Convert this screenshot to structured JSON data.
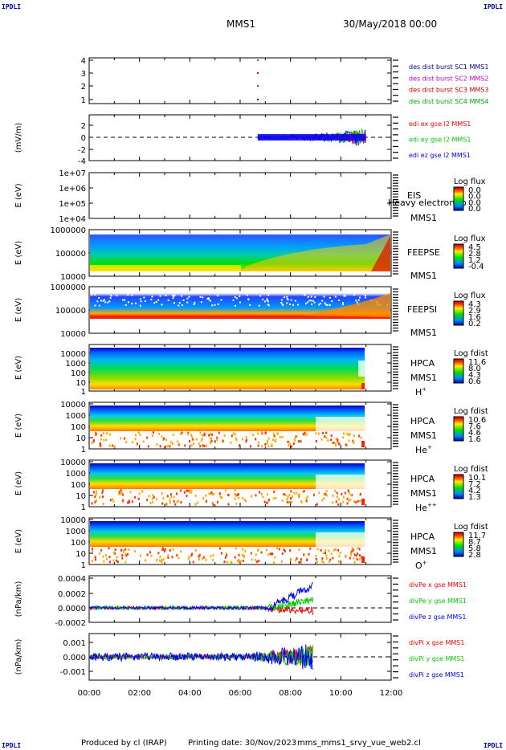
{
  "corner_label": "IPDLI",
  "header": {
    "spacecraft": "MMS1",
    "date": "30/May/2018 00:00"
  },
  "footer": {
    "produced_by": "Produced by cl (IRAP)",
    "printing_date": "Printing date: 30/Nov/2023",
    "file": "mms_mms1_srvy_vue_web2.cl"
  },
  "colors": {
    "c1": "#000099",
    "c2": "#cc00cc",
    "c3": "#cc0000",
    "c4": "#00aa00",
    "x": "#ff0000",
    "y": "#00cc00",
    "z": "#0000ff"
  },
  "chart_data": {
    "type": "multi-panel",
    "x_ticks": [
      "00:00",
      "02:00",
      "04:00",
      "06:00",
      "08:00",
      "10:00",
      "12:00"
    ],
    "xlim_hours": [
      0,
      12
    ],
    "panels": [
      {
        "id": "burst",
        "type": "scatter",
        "ylabel": "",
        "yticks": [
          "4",
          "3",
          "2",
          "1"
        ],
        "legend": [
          "des dist burst SC1 MMS1",
          "des dist burst SC2 MMS2",
          "des dist burst SC3 MMS3",
          "des dist burst SC4 MMS4"
        ],
        "points": [
          {
            "x": 6.7,
            "y": 4
          },
          {
            "x": 6.7,
            "y": 3
          },
          {
            "x": 6.7,
            "y": 2
          },
          {
            "x": 6.7,
            "y": 1
          }
        ]
      },
      {
        "id": "edi",
        "type": "line",
        "ylabel": "(mV/m)",
        "yticks": [
          "2",
          "0",
          "-2",
          "-4"
        ],
        "legend": [
          "edi ex gse l2 MMS1",
          "edi ey gse l2 MMS1",
          "edi ez gse l2 MMS1"
        ],
        "data_range_hours": [
          6.7,
          11.0
        ]
      },
      {
        "id": "eis",
        "type": "heatmap",
        "ylabel": "E (eV)",
        "yticks": [
          "1e+07",
          "1e+06",
          "1e+05",
          "1e+04"
        ],
        "instrument": [
          "EIS",
          "MMS1"
        ],
        "overlay": "Heavy electron to",
        "cbar_label": "Log flux",
        "cbar_ticks": [
          "0.0",
          "0.0",
          "0.0",
          "0.0"
        ]
      },
      {
        "id": "feepse",
        "type": "heatmap",
        "ylabel": "E (eV)",
        "yticks": [
          "1000000",
          "100000",
          "10000"
        ],
        "instrument": [
          "FEEPSE",
          "MMS1"
        ],
        "cbar_label": "Log flux",
        "cbar_ticks": [
          "4.5",
          "2.8",
          "1.2",
          "-0.4"
        ]
      },
      {
        "id": "feepsi",
        "type": "heatmap",
        "ylabel": "E (eV)",
        "yticks": [
          "1000000",
          "100000",
          "10000"
        ],
        "instrument": [
          "FEEPSI",
          "MMS1"
        ],
        "cbar_label": "Log flux",
        "cbar_ticks": [
          "4.3",
          "2.9",
          "1.6",
          "0.2"
        ]
      },
      {
        "id": "hpca-h",
        "type": "heatmap",
        "ylabel": "E (eV)",
        "yticks": [
          "10000",
          "1000",
          "100",
          "10",
          "1"
        ],
        "instrument": [
          "HPCA",
          "MMS1"
        ],
        "species": "H",
        "species_sup": "+",
        "cbar_label": "Log fdist",
        "cbar_ticks": [
          "11.6",
          "8.0",
          "4.3",
          "0.6"
        ]
      },
      {
        "id": "hpca-he",
        "type": "heatmap",
        "ylabel": "E (eV)",
        "yticks": [
          "10000",
          "1000",
          "100",
          "10",
          "1"
        ],
        "instrument": [
          "HPCA",
          "MMS1"
        ],
        "species": "He",
        "species_sup": "+",
        "cbar_label": "Log fdist",
        "cbar_ticks": [
          "10.6",
          "7.6",
          "4.6",
          "1.6"
        ]
      },
      {
        "id": "hpca-hepp",
        "type": "heatmap",
        "ylabel": "E (eV)",
        "yticks": [
          "10000",
          "1000",
          "100",
          "10",
          "1"
        ],
        "instrument": [
          "HPCA",
          "MMS1"
        ],
        "species": "He",
        "species_sup": "++",
        "cbar_label": "Log fdist",
        "cbar_ticks": [
          "10.1",
          "7.2",
          "4.2",
          "1.3"
        ]
      },
      {
        "id": "hpca-o",
        "type": "heatmap",
        "ylabel": "E (eV)",
        "yticks": [
          "10000",
          "1000",
          "100",
          "10",
          "1"
        ],
        "instrument": [
          "HPCA",
          "MMS1"
        ],
        "species": "O",
        "species_sup": "+",
        "cbar_label": "Log fdist",
        "cbar_ticks": [
          "11.7",
          "8.7",
          "5.8",
          "2.8"
        ]
      },
      {
        "id": "divpe",
        "type": "line",
        "ylabel": "(nPa/km)",
        "yticks": [
          "0.0004",
          "0.0002",
          "0.0000",
          "-0.0002"
        ],
        "legend": [
          "divPe x gse MMS1",
          "divPe y gse MMS1",
          "divPe z gse MMS1"
        ],
        "data_range_hours": [
          0,
          8.9
        ]
      },
      {
        "id": "divpi",
        "type": "line",
        "ylabel": "(nPa/km)",
        "yticks": [
          "0.001",
          "0.000",
          "-0.001"
        ],
        "legend": [
          "divPi x gse MMS1",
          "divPi y gse MMS1",
          "divPi z gse MMS1"
        ],
        "data_range_hours": [
          0,
          8.9
        ]
      }
    ]
  }
}
